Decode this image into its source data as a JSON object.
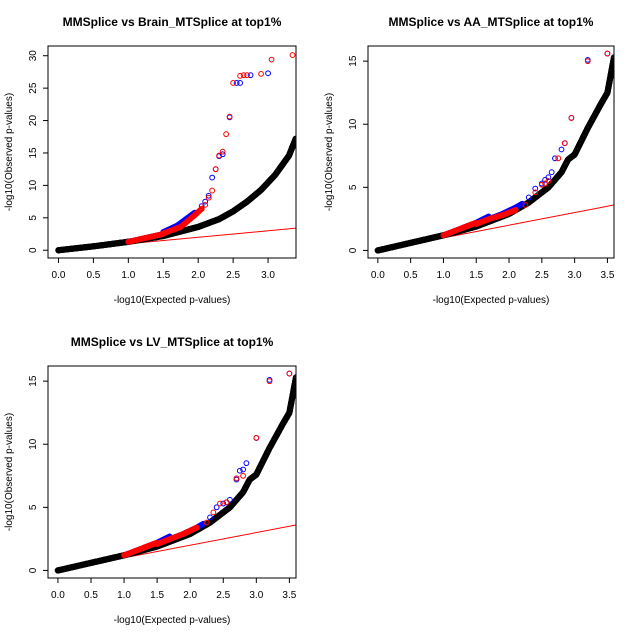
{
  "chart_data": [
    {
      "type": "scatter",
      "title": "MMSplice vs Brain_MTSplice at top1%",
      "xlabel": "-log10(Expected p-values)",
      "ylabel": "-log10(Observed p-values)",
      "xlim": [
        -0.15,
        3.4
      ],
      "ylim": [
        -1.2,
        31.5
      ],
      "xticks": [
        "0.0",
        "0.5",
        "1.0",
        "1.5",
        "2.0",
        "2.5",
        "3.0"
      ],
      "yticks": [
        "0",
        "5",
        "10",
        "15",
        "20",
        "25",
        "30"
      ],
      "reference_line": {
        "from": [
          0.0,
          0.0
        ],
        "to": [
          3.4,
          3.4
        ],
        "color": "#ff0000"
      },
      "colors": {
        "black": "#000000",
        "blue": "#0000ff",
        "red": "#ff0000"
      },
      "series": [
        {
          "name": "black",
          "color": "#000000",
          "x": [
            0.0,
            0.5,
            1.0,
            1.5,
            2.0,
            2.3,
            2.5,
            2.7,
            2.9,
            3.1,
            3.3,
            3.4
          ],
          "y": [
            0.0,
            0.6,
            1.3,
            2.2,
            3.6,
            4.8,
            6.0,
            7.5,
            9.3,
            11.6,
            14.6,
            17.3
          ]
        },
        {
          "name": "blue",
          "color": "#0000ff",
          "x": [
            1.5,
            1.7,
            1.85,
            1.95,
            2.05,
            2.1,
            2.15,
            2.2,
            2.25,
            2.3,
            2.35,
            2.45,
            2.55,
            2.6,
            2.75,
            3.0
          ],
          "y": [
            2.8,
            3.8,
            5.0,
            5.8,
            6.8,
            7.5,
            8.4,
            11.2,
            12.5,
            14.5,
            14.8,
            20.5,
            25.8,
            25.8,
            27.0,
            27.3
          ]
        },
        {
          "name": "red",
          "color": "#ff0000",
          "x": [
            1.5,
            1.75,
            1.95,
            2.05,
            2.1,
            2.15,
            2.2,
            2.25,
            2.3,
            2.35,
            2.4,
            2.45,
            2.5,
            2.6,
            2.65,
            2.7,
            2.9,
            3.05,
            3.35
          ],
          "y": [
            2.6,
            3.6,
            5.4,
            6.4,
            7.0,
            8.1,
            9.2,
            12.5,
            14.6,
            15.2,
            17.9,
            20.6,
            25.8,
            26.9,
            27.0,
            27.0,
            27.2,
            29.4,
            30.1
          ]
        }
      ]
    },
    {
      "type": "scatter",
      "title": "MMSplice vs AA_MTSplice at top1%",
      "xlabel": "-log10(Expected p-values)",
      "ylabel": "-log10(Observed p-values)",
      "xlim": [
        -0.15,
        3.6
      ],
      "ylim": [
        -0.6,
        16.2
      ],
      "xticks": [
        "0.0",
        "0.5",
        "1.0",
        "1.5",
        "2.0",
        "2.5",
        "3.0",
        "3.5"
      ],
      "yticks": [
        "0",
        "5",
        "10",
        "15"
      ],
      "reference_line": {
        "from": [
          0.0,
          0.0
        ],
        "to": [
          3.6,
          3.6
        ],
        "color": "#ff0000"
      },
      "colors": {
        "black": "#000000",
        "blue": "#0000ff",
        "red": "#ff0000"
      },
      "series": [
        {
          "name": "black",
          "color": "#000000",
          "x": [
            0.0,
            0.5,
            1.0,
            1.5,
            2.0,
            2.3,
            2.6,
            2.8,
            2.9,
            3.0,
            3.2,
            3.4,
            3.5,
            3.6
          ],
          "y": [
            0.0,
            0.6,
            1.2,
            1.9,
            2.9,
            3.8,
            5.0,
            6.2,
            7.2,
            7.6,
            9.7,
            11.6,
            12.5,
            15.3
          ]
        },
        {
          "name": "blue",
          "color": "#0000ff",
          "x": [
            1.7,
            1.9,
            2.1,
            2.2,
            2.3,
            2.4,
            2.5,
            2.55,
            2.6,
            2.65,
            2.7,
            2.8,
            2.85,
            2.95,
            3.2,
            3.5
          ],
          "y": [
            2.5,
            2.9,
            3.4,
            3.7,
            4.2,
            4.9,
            5.3,
            5.6,
            5.8,
            6.2,
            7.3,
            8.0,
            8.5,
            10.5,
            15.1,
            15.6
          ]
        },
        {
          "name": "red",
          "color": "#ff0000",
          "x": [
            1.5,
            1.7,
            1.9,
            2.1,
            2.25,
            2.4,
            2.5,
            2.55,
            2.6,
            2.75,
            2.85,
            2.95,
            3.2,
            3.5
          ],
          "y": [
            2.1,
            2.5,
            2.8,
            3.2,
            3.6,
            4.6,
            5.2,
            5.3,
            5.5,
            7.3,
            8.5,
            10.5,
            15.0,
            15.6
          ]
        }
      ]
    },
    {
      "type": "scatter",
      "title": "MMSplice vs LV_MTSplice at top1%",
      "xlabel": "-log10(Expected p-values)",
      "ylabel": "-log10(Observed p-values)",
      "xlim": [
        -0.15,
        3.6
      ],
      "ylim": [
        -0.6,
        16.2
      ],
      "xticks": [
        "0.0",
        "0.5",
        "1.0",
        "1.5",
        "2.0",
        "2.5",
        "3.0",
        "3.5"
      ],
      "yticks": [
        "0",
        "5",
        "10",
        "15"
      ],
      "reference_line": {
        "from": [
          0.0,
          0.0
        ],
        "to": [
          3.6,
          3.6
        ],
        "color": "#ff0000"
      },
      "colors": {
        "black": "#000000",
        "blue": "#0000ff",
        "red": "#ff0000"
      },
      "series": [
        {
          "name": "black",
          "color": "#000000",
          "x": [
            0.0,
            0.5,
            1.0,
            1.5,
            2.0,
            2.3,
            2.6,
            2.8,
            2.9,
            3.0,
            3.2,
            3.4,
            3.5,
            3.6
          ],
          "y": [
            0.0,
            0.6,
            1.2,
            1.9,
            2.9,
            3.8,
            5.0,
            6.2,
            7.2,
            7.6,
            9.7,
            11.6,
            12.5,
            15.3
          ]
        },
        {
          "name": "blue",
          "color": "#0000ff",
          "x": [
            1.7,
            1.9,
            2.1,
            2.2,
            2.3,
            2.4,
            2.5,
            2.55,
            2.6,
            2.7,
            2.75,
            2.8,
            2.85,
            3.0,
            3.2,
            3.5
          ],
          "y": [
            2.5,
            2.9,
            3.4,
            3.7,
            4.2,
            5.0,
            5.3,
            5.4,
            5.6,
            7.2,
            7.9,
            8.0,
            8.5,
            10.5,
            15.1,
            15.6
          ]
        },
        {
          "name": "red",
          "color": "#ff0000",
          "x": [
            1.5,
            1.7,
            1.9,
            2.1,
            2.25,
            2.35,
            2.45,
            2.55,
            2.7,
            2.8,
            3.0,
            3.2,
            3.5
          ],
          "y": [
            2.1,
            2.5,
            2.9,
            3.4,
            3.8,
            4.6,
            5.3,
            5.4,
            7.3,
            7.5,
            10.5,
            15.0,
            15.6
          ]
        }
      ]
    }
  ]
}
